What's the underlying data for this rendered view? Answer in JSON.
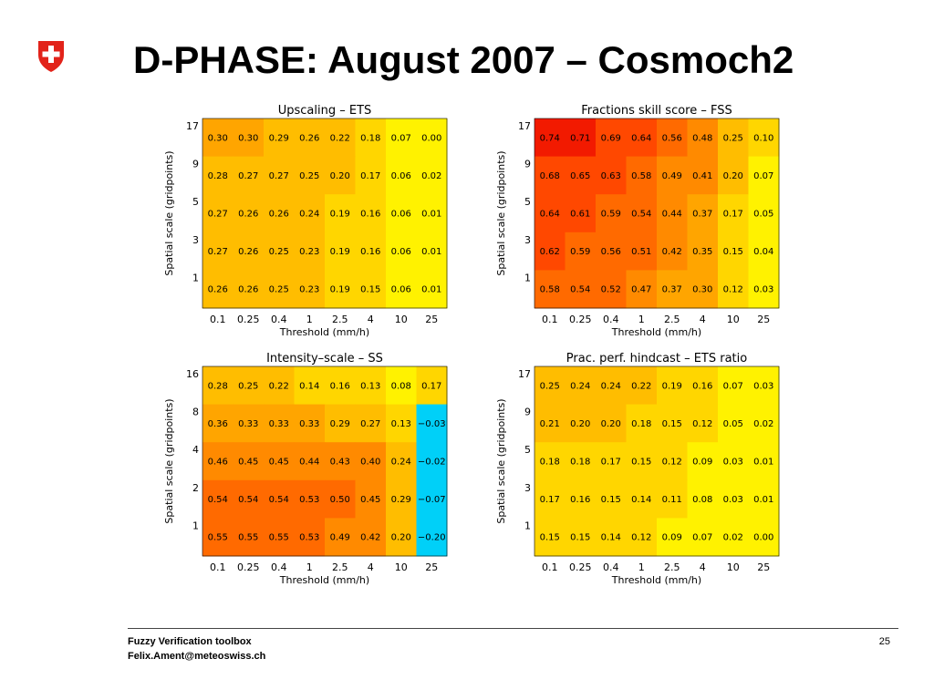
{
  "slide": {
    "title": "D-PHASE: August 2007 – Cosmoch2",
    "footer_line1": "Fuzzy Verification toolbox",
    "footer_line2": "Felix.Ament@meteoswiss.ch",
    "page_number": "25",
    "logo": "swiss-cross-icon",
    "logo_colors": {
      "shield": "#e2231a",
      "cross": "#ffffff"
    }
  },
  "chart_data": [
    {
      "type": "heatmap",
      "title": "Upscaling – ETS",
      "xlabel": "Threshold (mm/h)",
      "ylabel": "Spatial scale (gridpoints)",
      "x": [
        "0.1",
        "0.25",
        "0.4",
        "1",
        "2.5",
        "4",
        "10",
        "25"
      ],
      "y": [
        "17",
        "9",
        "5",
        "3",
        "1"
      ],
      "values": [
        [
          0.3,
          0.3,
          0.29,
          0.26,
          0.22,
          0.18,
          0.07,
          0.0
        ],
        [
          0.28,
          0.27,
          0.27,
          0.25,
          0.2,
          0.17,
          0.06,
          0.02
        ],
        [
          0.27,
          0.26,
          0.26,
          0.24,
          0.19,
          0.16,
          0.06,
          0.01
        ],
        [
          0.27,
          0.26,
          0.25,
          0.23,
          0.19,
          0.16,
          0.06,
          0.01
        ],
        [
          0.26,
          0.26,
          0.25,
          0.23,
          0.19,
          0.15,
          0.06,
          0.01
        ]
      ],
      "labels": [
        [
          "0.30",
          "0.30",
          "0.29",
          "0.26",
          "0.22",
          "0.18",
          "0.07",
          "0.00"
        ],
        [
          "0.28",
          "0.27",
          "0.27",
          "0.25",
          "0.20",
          "0.17",
          "0.06",
          "0.02"
        ],
        [
          "0.27",
          "0.26",
          "0.26",
          "0.24",
          "0.19",
          "0.16",
          "0.06",
          "0.01"
        ],
        [
          "0.27",
          "0.26",
          "0.25",
          "0.23",
          "0.19",
          "0.16",
          "0.06",
          "0.01"
        ],
        [
          "0.26",
          "0.26",
          "0.25",
          "0.23",
          "0.19",
          "0.15",
          "0.06",
          "0.01"
        ]
      ]
    },
    {
      "type": "heatmap",
      "title": "Fractions skill score – FSS",
      "xlabel": "Threshold (mm/h)",
      "ylabel": "Spatial scale (gridpoints)",
      "x": [
        "0.1",
        "0.25",
        "0.4",
        "1",
        "2.5",
        "4",
        "10",
        "25"
      ],
      "y": [
        "17",
        "9",
        "5",
        "3",
        "1"
      ],
      "values": [
        [
          0.74,
          0.71,
          0.69,
          0.64,
          0.56,
          0.48,
          0.25,
          0.1
        ],
        [
          0.68,
          0.65,
          0.63,
          0.58,
          0.49,
          0.41,
          0.2,
          0.07
        ],
        [
          0.64,
          0.61,
          0.59,
          0.54,
          0.44,
          0.37,
          0.17,
          0.05
        ],
        [
          0.62,
          0.59,
          0.56,
          0.51,
          0.42,
          0.35,
          0.15,
          0.04
        ],
        [
          0.58,
          0.54,
          0.52,
          0.47,
          0.37,
          0.3,
          0.12,
          0.03
        ]
      ],
      "labels": [
        [
          "0.74",
          "0.71",
          "0.69",
          "0.64",
          "0.56",
          "0.48",
          "0.25",
          "0.10"
        ],
        [
          "0.68",
          "0.65",
          "0.63",
          "0.58",
          "0.49",
          "0.41",
          "0.20",
          "0.07"
        ],
        [
          "0.64",
          "0.61",
          "0.59",
          "0.54",
          "0.44",
          "0.37",
          "0.17",
          "0.05"
        ],
        [
          "0.62",
          "0.59",
          "0.56",
          "0.51",
          "0.42",
          "0.35",
          "0.15",
          "0.04"
        ],
        [
          "0.58",
          "0.54",
          "0.52",
          "0.47",
          "0.37",
          "0.30",
          "0.12",
          "0.03"
        ]
      ]
    },
    {
      "type": "heatmap",
      "title": "Intensity–scale – SS",
      "xlabel": "Threshold (mm/h)",
      "ylabel": "Spatial scale (gridpoints)",
      "x": [
        "0.1",
        "0.25",
        "0.4",
        "1",
        "2.5",
        "4",
        "10",
        "25"
      ],
      "y": [
        "16",
        "8",
        "4",
        "2",
        "1"
      ],
      "values": [
        [
          0.28,
          0.25,
          0.22,
          0.14,
          0.16,
          0.13,
          0.08,
          0.17
        ],
        [
          0.36,
          0.33,
          0.33,
          0.33,
          0.29,
          0.27,
          0.13,
          -0.03
        ],
        [
          0.46,
          0.45,
          0.45,
          0.44,
          0.43,
          0.4,
          0.24,
          -0.02
        ],
        [
          0.54,
          0.54,
          0.54,
          0.53,
          0.5,
          0.45,
          0.29,
          -0.07
        ],
        [
          0.55,
          0.55,
          0.55,
          0.53,
          0.49,
          0.42,
          0.2,
          -0.2
        ]
      ],
      "labels": [
        [
          "0.28",
          "0.25",
          "0.22",
          "0.14",
          "0.16",
          "0.13",
          "0.08",
          "0.17"
        ],
        [
          "0.36",
          "0.33",
          "0.33",
          "0.33",
          "0.29",
          "0.27",
          "0.13",
          "−0.03"
        ],
        [
          "0.46",
          "0.45",
          "0.45",
          "0.44",
          "0.43",
          "0.40",
          "0.24",
          "−0.02"
        ],
        [
          "0.54",
          "0.54",
          "0.54",
          "0.53",
          "0.50",
          "0.45",
          "0.29",
          "−0.07"
        ],
        [
          "0.55",
          "0.55",
          "0.55",
          "0.53",
          "0.49",
          "0.42",
          "0.20",
          "−0.20"
        ]
      ]
    },
    {
      "type": "heatmap",
      "title": "Prac. perf. hindcast – ETS ratio",
      "xlabel": "Threshold (mm/h)",
      "ylabel": "Spatial scale (gridpoints)",
      "x": [
        "0.1",
        "0.25",
        "0.4",
        "1",
        "2.5",
        "4",
        "10",
        "25"
      ],
      "y": [
        "17",
        "9",
        "5",
        "3",
        "1"
      ],
      "values": [
        [
          0.25,
          0.24,
          0.24,
          0.22,
          0.19,
          0.16,
          0.07,
          0.03
        ],
        [
          0.21,
          0.2,
          0.2,
          0.18,
          0.15,
          0.12,
          0.05,
          0.02
        ],
        [
          0.18,
          0.18,
          0.17,
          0.15,
          0.12,
          0.09,
          0.03,
          0.01
        ],
        [
          0.17,
          0.16,
          0.15,
          0.14,
          0.11,
          0.08,
          0.03,
          0.01
        ],
        [
          0.15,
          0.15,
          0.14,
          0.12,
          0.09,
          0.07,
          0.02,
          0.0
        ]
      ],
      "labels": [
        [
          "0.25",
          "0.24",
          "0.24",
          "0.22",
          "0.19",
          "0.16",
          "0.07",
          "0.03"
        ],
        [
          "0.21",
          "0.20",
          "0.20",
          "0.18",
          "0.15",
          "0.12",
          "0.05",
          "0.02"
        ],
        [
          "0.18",
          "0.18",
          "0.17",
          "0.15",
          "0.12",
          "0.09",
          "0.03",
          "0.01"
        ],
        [
          "0.17",
          "0.16",
          "0.15",
          "0.14",
          "0.11",
          "0.08",
          "0.03",
          "0.01"
        ],
        [
          "0.15",
          "0.15",
          "0.14",
          "0.12",
          "0.09",
          "0.07",
          "0.02",
          "0.00"
        ]
      ]
    }
  ],
  "colors": {
    "scale": [
      "#00d0f8",
      "#fff200",
      "#ffd600",
      "#ffbd00",
      "#ffa500",
      "#ff8a00",
      "#ff6a00",
      "#ff4800",
      "#f21a00"
    ],
    "thresholds": [
      0.0,
      0.1,
      0.2,
      0.3,
      0.4,
      0.5,
      0.6,
      0.7
    ]
  }
}
